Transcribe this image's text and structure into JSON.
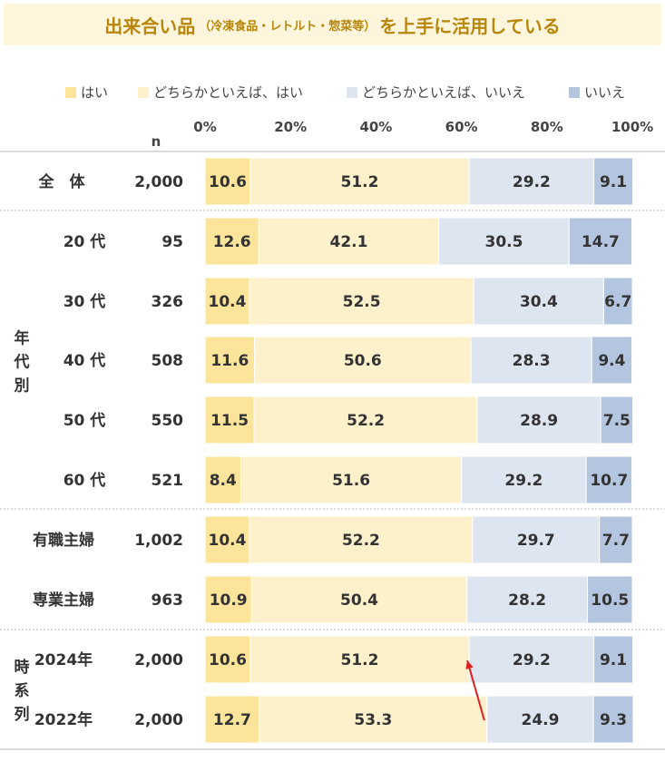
{
  "title": {
    "main_prefix": "出来合い品",
    "sub": "（冷凍食品・レトルト・惣菜等）",
    "main_suffix": "を上手に活用している"
  },
  "colors": {
    "title_bg": "#fdf6dc",
    "title_text": "#b8860b",
    "series": [
      "#fce49a",
      "#fdf1cc",
      "#dde5f1",
      "#b4c5e0"
    ],
    "divider": "#b8b8b8",
    "arrow": "#e02020"
  },
  "chart_data": {
    "type": "bar",
    "orientation": "horizontal",
    "stacked": true,
    "unit": "%",
    "xlim": [
      0,
      100
    ],
    "x_ticks": [
      "0%",
      "20%",
      "40%",
      "60%",
      "80%",
      "100%"
    ],
    "n_header": "n",
    "legend_position": "top",
    "series": [
      {
        "name": "はい"
      },
      {
        "name": "どちらかといえば、はい"
      },
      {
        "name": "どちらかといえば、いいえ"
      },
      {
        "name": "いいえ"
      }
    ],
    "groups": [
      {
        "label": "",
        "rows": [
          {
            "label": "全　体",
            "n": "2,000",
            "values": [
              10.6,
              51.2,
              29.2,
              9.1
            ]
          }
        ]
      },
      {
        "label": "年代別",
        "rows": [
          {
            "label": "20 代",
            "n": "95",
            "values": [
              12.6,
              42.1,
              30.5,
              14.7
            ]
          },
          {
            "label": "30 代",
            "n": "326",
            "values": [
              10.4,
              52.5,
              30.4,
              6.7
            ]
          },
          {
            "label": "40 代",
            "n": "508",
            "values": [
              11.6,
              50.6,
              28.3,
              9.4
            ]
          },
          {
            "label": "50 代",
            "n": "550",
            "values": [
              11.5,
              52.2,
              28.9,
              7.5
            ]
          },
          {
            "label": "60 代",
            "n": "521",
            "values": [
              8.4,
              51.6,
              29.2,
              10.7
            ]
          }
        ]
      },
      {
        "label": "",
        "rows": [
          {
            "label": "有職主婦",
            "n": "1,002",
            "values": [
              10.4,
              52.2,
              29.7,
              7.7
            ]
          },
          {
            "label": "専業主婦",
            "n": "963",
            "values": [
              10.9,
              50.4,
              28.2,
              10.5
            ]
          }
        ]
      },
      {
        "label": "時系列",
        "rows": [
          {
            "label": "2024年",
            "n": "2,000",
            "values": [
              10.6,
              51.2,
              29.2,
              9.1
            ]
          },
          {
            "label": "2022年",
            "n": "2,000",
            "values": [
              12.7,
              53.3,
              24.9,
              9.3
            ]
          }
        ]
      }
    ],
    "annotations": [
      {
        "type": "arrow",
        "from": "2022年 cumulative はい+どちらかといえば、はい",
        "to": "2024年 cumulative はい+どちらかといえば、はい"
      }
    ]
  }
}
